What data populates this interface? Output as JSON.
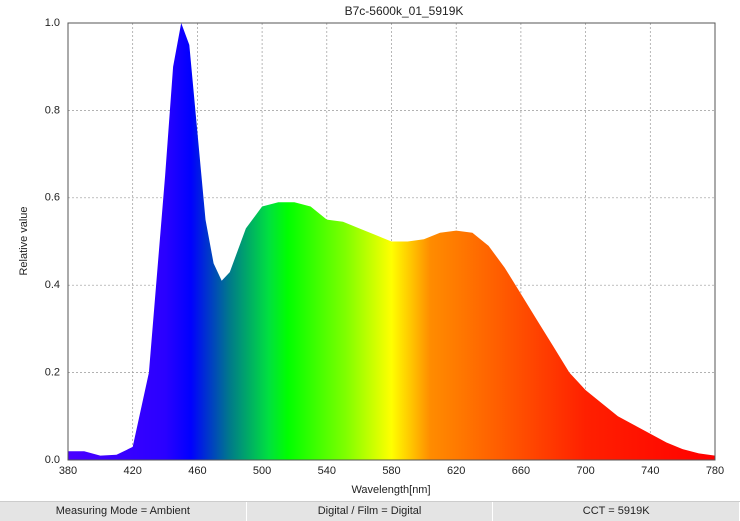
{
  "chart_data": {
    "type": "area",
    "title": "B7c-5600k_01_5919K",
    "x_label": "Wavelength[nm]",
    "y_label": "Relative value",
    "x": [
      380,
      390,
      400,
      410,
      420,
      430,
      440,
      445,
      450,
      455,
      460,
      465,
      470,
      475,
      480,
      490,
      500,
      510,
      520,
      530,
      540,
      550,
      560,
      570,
      580,
      590,
      600,
      610,
      620,
      630,
      640,
      650,
      660,
      670,
      680,
      690,
      700,
      710,
      720,
      730,
      740,
      750,
      760,
      770,
      780
    ],
    "values": [
      0.02,
      0.02,
      0.01,
      0.012,
      0.03,
      0.2,
      0.65,
      0.9,
      1.0,
      0.95,
      0.75,
      0.55,
      0.45,
      0.41,
      0.43,
      0.53,
      0.58,
      0.59,
      0.59,
      0.58,
      0.55,
      0.545,
      0.53,
      0.515,
      0.5,
      0.5,
      0.505,
      0.52,
      0.525,
      0.52,
      0.49,
      0.44,
      0.38,
      0.32,
      0.26,
      0.2,
      0.16,
      0.13,
      0.1,
      0.08,
      0.06,
      0.04,
      0.025,
      0.015,
      0.01
    ],
    "xlim": [
      380,
      780
    ],
    "ylim": [
      0,
      1
    ],
    "xticks": [
      380,
      420,
      460,
      500,
      540,
      580,
      620,
      660,
      700,
      740,
      780
    ],
    "yticks": [
      {
        "value": 0,
        "label": "0.0"
      },
      0.2,
      0.4,
      0.6,
      0.8,
      {
        "value": 1,
        "label": "1.0"
      }
    ],
    "grid": true
  },
  "footer": [
    "Measuring Mode = Ambient",
    "Digital / Film = Digital",
    "CCT = 5919K"
  ]
}
